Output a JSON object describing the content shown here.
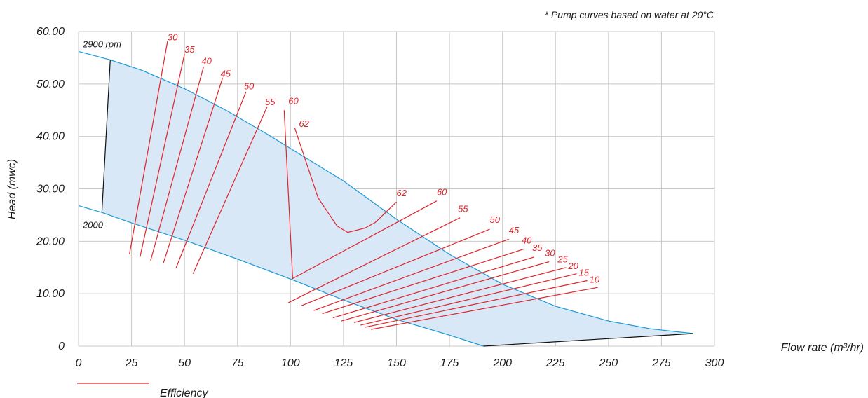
{
  "chart_data": {
    "type": "line",
    "note": "* Pump curves based on water at 20°C",
    "xlabel": "Flow rate (m³/hr)",
    "ylabel": "Head (mwc)",
    "xlim": [
      0,
      300
    ],
    "ylim": [
      0,
      60
    ],
    "x_ticks": [
      "0",
      "25",
      "50",
      "75",
      "100",
      "125",
      "150",
      "175",
      "200",
      "225",
      "250",
      "275",
      "300"
    ],
    "y_ticks": [
      "0",
      "10.00",
      "20.00",
      "30.00",
      "40.00",
      "50.00",
      "60.00"
    ],
    "grid": true,
    "colors": {
      "speed_curve": "#1a9ad6",
      "operating_area": "#d9e8f7",
      "efficiency": "#e0242b",
      "boundary": "#111111",
      "grid": "#c8c8c8"
    },
    "speed_curves": [
      {
        "name": "2900 rpm",
        "points": [
          [
            0,
            56.2
          ],
          [
            15,
            54.6
          ],
          [
            30,
            52.6
          ],
          [
            50,
            49.1
          ],
          [
            70,
            44.9
          ],
          [
            90,
            40.2
          ],
          [
            100,
            37.7
          ],
          [
            125,
            31.5
          ],
          [
            150,
            24.2
          ],
          [
            175,
            17.5
          ],
          [
            200,
            11.8
          ],
          [
            225,
            7.6
          ],
          [
            250,
            4.8
          ],
          [
            270,
            3.3
          ],
          [
            290,
            2.4
          ]
        ]
      },
      {
        "name": "2000",
        "points": [
          [
            0,
            26.8
          ],
          [
            11,
            25.5
          ],
          [
            25,
            23.5
          ],
          [
            50,
            20.2
          ],
          [
            75,
            16.6
          ],
          [
            100,
            12.8
          ],
          [
            125,
            8.8
          ],
          [
            150,
            5.1
          ],
          [
            175,
            2.1
          ],
          [
            191,
            0
          ]
        ]
      }
    ],
    "boundaries": [
      {
        "points": [
          [
            11,
            25.5
          ],
          [
            15,
            54.6
          ]
        ]
      },
      {
        "points": [
          [
            191,
            0
          ],
          [
            290,
            2.4
          ]
        ]
      }
    ],
    "efficiency_series_name": "Efficiency",
    "efficiency_lines": [
      {
        "label": "30",
        "points": [
          [
            24,
            17.5
          ],
          [
            42,
            58.2
          ]
        ]
      },
      {
        "label": "35",
        "points": [
          [
            29,
            17
          ],
          [
            50,
            55.7
          ]
        ]
      },
      {
        "label": "40",
        "points": [
          [
            34,
            16.3
          ],
          [
            59,
            53.3
          ]
        ]
      },
      {
        "label": "45",
        "points": [
          [
            40,
            15.8
          ],
          [
            68,
            51.2
          ]
        ]
      },
      {
        "label": "50",
        "points": [
          [
            46,
            14.9
          ],
          [
            79,
            48.5
          ]
        ]
      },
      {
        "label": "55",
        "points": [
          [
            54,
            13.8
          ],
          [
            89,
            45.7
          ]
        ]
      },
      {
        "label": "60",
        "points": [
          [
            101,
            12.9
          ],
          [
            97,
            45
          ],
          [
            101,
            12.9
          ],
          [
            169,
            27.7
          ]
        ]
      },
      {
        "label": "62",
        "points": [
          [
            102,
            41.6
          ],
          [
            113,
            28.3
          ],
          [
            122,
            22.9
          ],
          [
            127,
            21.7
          ],
          [
            135,
            22.5
          ],
          [
            140,
            23.6
          ],
          [
            150,
            27.5
          ]
        ]
      },
      {
        "label": "55",
        "points": [
          [
            99,
            8.3
          ],
          [
            180,
            24.5
          ]
        ]
      },
      {
        "label": "50",
        "points": [
          [
            105,
            7.7
          ],
          [
            194,
            22.3
          ]
        ]
      },
      {
        "label": "45",
        "points": [
          [
            111,
            6.8
          ],
          [
            203,
            20.4
          ]
        ]
      },
      {
        "label": "40",
        "points": [
          [
            115,
            6.2
          ],
          [
            210,
            18.5
          ]
        ]
      },
      {
        "label": "35",
        "points": [
          [
            120,
            5.4
          ],
          [
            215,
            17
          ]
        ]
      },
      {
        "label": "30",
        "points": [
          [
            124,
            4.8
          ],
          [
            222,
            16.1
          ]
        ]
      },
      {
        "label": "25",
        "points": [
          [
            130,
            4.5
          ],
          [
            230,
            15
          ]
        ]
      },
      {
        "label": "20",
        "points": [
          [
            133,
            4
          ],
          [
            235,
            13.8
          ]
        ]
      },
      {
        "label": "15",
        "points": [
          [
            135,
            3.6
          ],
          [
            240,
            12.5
          ]
        ]
      },
      {
        "label": "10",
        "points": [
          [
            138,
            3.2
          ],
          [
            245,
            11.2
          ]
        ]
      }
    ]
  }
}
